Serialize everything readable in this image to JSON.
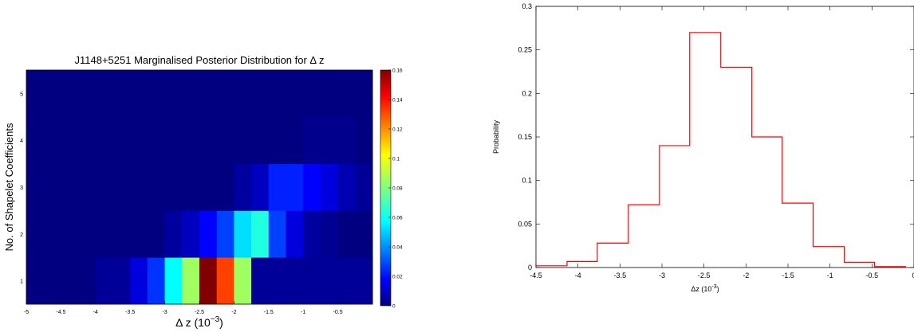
{
  "chart_data": [
    {
      "type": "heatmap",
      "title": "J1148+5251 Marginalised Posterior Distribution for Δ z",
      "xlabel": "Δ z (10",
      "xlabel_exp": "−3",
      "xlabel_close": ")",
      "ylabel": "No. of Shapelet Coefficients",
      "xlim": [
        -5,
        0
      ],
      "ylim": [
        0.5,
        5.5
      ],
      "x_ticks": [
        "-5",
        "-4.5",
        "-4",
        "-3.5",
        "-3",
        "-2.5",
        "-2",
        "-1.5",
        "-1",
        "-0.5"
      ],
      "y_ticks": [
        "1",
        "2",
        "3",
        "4",
        "5"
      ],
      "colorbar": {
        "range": [
          0,
          0.16
        ],
        "ticks": [
          "0",
          "0.02",
          "0.04",
          "0.06",
          "0.08",
          "0.1",
          "0.12",
          "0.14",
          "0.16"
        ]
      },
      "cell_x_centers": [
        -4.875,
        -4.625,
        -4.375,
        -4.125,
        -3.875,
        -3.625,
        -3.375,
        -3.125,
        -2.875,
        -2.625,
        -2.375,
        -2.125,
        -1.875,
        -1.625,
        -1.375,
        -1.125,
        -0.875,
        -0.625,
        -0.375,
        -0.125
      ],
      "cell_y_centers": [
        1,
        2,
        3,
        4,
        5
      ],
      "values": [
        [
          0,
          0,
          0,
          0,
          0.004,
          0.004,
          0.015,
          0.028,
          0.06,
          0.085,
          0.16,
          0.13,
          0.085,
          0.004,
          0.004,
          0.004,
          0.004,
          0.004,
          0.004,
          0.004
        ],
        [
          0,
          0,
          0,
          0,
          0,
          0,
          0,
          0,
          0.005,
          0.01,
          0.02,
          0.03,
          0.055,
          0.065,
          0.03,
          0.015,
          0.005,
          0.003,
          0,
          0
        ],
        [
          0,
          0,
          0,
          0,
          0,
          0,
          0,
          0,
          0,
          0,
          0,
          0,
          0.005,
          0.01,
          0.025,
          0.025,
          0.02,
          0.015,
          0.008,
          0.004
        ],
        [
          0,
          0,
          0,
          0,
          0,
          0,
          0,
          0,
          0,
          0,
          0,
          0,
          0,
          0,
          0,
          0,
          0.002,
          0.002,
          0.002,
          0
        ],
        [
          0,
          0,
          0,
          0,
          0,
          0,
          0,
          0,
          0,
          0,
          0,
          0,
          0,
          0,
          0,
          0,
          0,
          0,
          0,
          0
        ]
      ]
    },
    {
      "type": "histogram",
      "title": "",
      "xlabel": "Δz (10",
      "xlabel_exp": "-3",
      "xlabel_close": ")",
      "ylabel": "Probability",
      "xlim": [
        -4.5,
        0
      ],
      "ylim": [
        0,
        0.3
      ],
      "x_ticks": [
        "-4.5",
        "-4",
        "-3.5",
        "-3",
        "-2.5",
        "-2",
        "-1.5",
        "-1",
        "-0.5",
        "0"
      ],
      "y_ticks": [
        "0",
        "0.05",
        "0.1",
        "0.15",
        "0.2",
        "0.25",
        "0.3"
      ],
      "color": "#ff0000",
      "bin_edges": [
        -4.5,
        -4.13,
        -3.77,
        -3.4,
        -3.03,
        -2.67,
        -2.3,
        -1.93,
        -1.57,
        -1.2,
        -0.83,
        -0.47,
        -0.1
      ],
      "values": [
        0.002,
        0.007,
        0.028,
        0.072,
        0.14,
        0.27,
        0.23,
        0.15,
        0.074,
        0.024,
        0.006,
        0.001
      ]
    }
  ]
}
